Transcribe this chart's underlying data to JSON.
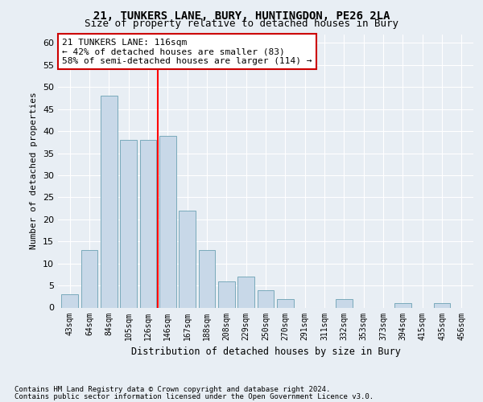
{
  "title": "21, TUNKERS LANE, BURY, HUNTINGDON, PE26 2LA",
  "subtitle": "Size of property relative to detached houses in Bury",
  "xlabel": "Distribution of detached houses by size in Bury",
  "ylabel": "Number of detached properties",
  "bar_labels": [
    "43sqm",
    "64sqm",
    "84sqm",
    "105sqm",
    "126sqm",
    "146sqm",
    "167sqm",
    "188sqm",
    "208sqm",
    "229sqm",
    "250sqm",
    "270sqm",
    "291sqm",
    "311sqm",
    "332sqm",
    "353sqm",
    "373sqm",
    "394sqm",
    "415sqm",
    "435sqm",
    "456sqm"
  ],
  "bar_values": [
    3,
    13,
    48,
    38,
    38,
    39,
    22,
    13,
    6,
    7,
    4,
    2,
    0,
    0,
    2,
    0,
    0,
    1,
    0,
    1,
    0
  ],
  "bar_color": "#c8d8e8",
  "bar_edge_color": "#7aaabb",
  "ylim": [
    0,
    62
  ],
  "yticks": [
    0,
    5,
    10,
    15,
    20,
    25,
    30,
    35,
    40,
    45,
    50,
    55,
    60
  ],
  "red_line_x": 4.5,
  "annotation_line1": "21 TUNKERS LANE: 116sqm",
  "annotation_line2": "← 42% of detached houses are smaller (83)",
  "annotation_line3": "58% of semi-detached houses are larger (114) →",
  "annotation_box_color": "#ffffff",
  "annotation_box_edge_color": "#cc0000",
  "footnote1": "Contains HM Land Registry data © Crown copyright and database right 2024.",
  "footnote2": "Contains public sector information licensed under the Open Government Licence v3.0.",
  "bg_color": "#e8eef4",
  "grid_color": "#ffffff",
  "title_fontsize": 10,
  "subtitle_fontsize": 9,
  "annotation_fontsize": 8,
  "ylabel_fontsize": 8,
  "xlabel_fontsize": 8.5,
  "footnote_fontsize": 6.5
}
